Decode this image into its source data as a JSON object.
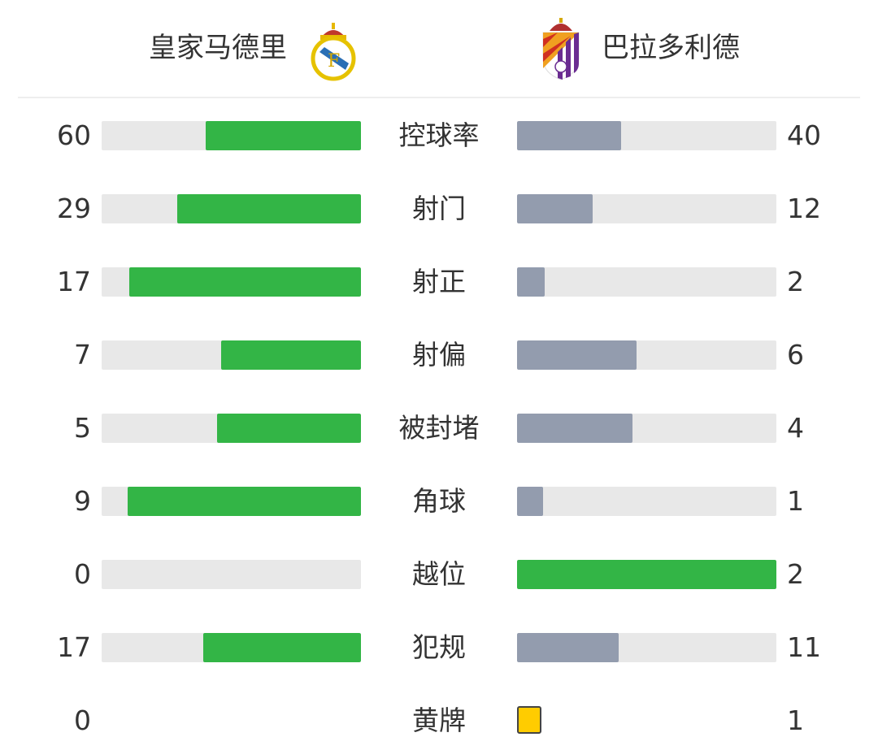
{
  "home": {
    "name": "皇家马德里",
    "logo": "real-madrid-crest"
  },
  "away": {
    "name": "巴拉多利德",
    "logo": "real-valladolid-crest"
  },
  "colors": {
    "leader": "#33b546",
    "trailer": "#939cae",
    "track": "#e8e8e8",
    "yellow_card": "#ffcc00"
  },
  "stats": [
    {
      "label": "控球率",
      "home": "60",
      "away": "40"
    },
    {
      "label": "射门",
      "home": "29",
      "away": "12"
    },
    {
      "label": "射正",
      "home": "17",
      "away": "2"
    },
    {
      "label": "射偏",
      "home": "7",
      "away": "6"
    },
    {
      "label": "被封堵",
      "home": "5",
      "away": "4"
    },
    {
      "label": "角球",
      "home": "9",
      "away": "1"
    },
    {
      "label": "越位",
      "home": "0",
      "away": "2"
    },
    {
      "label": "犯规",
      "home": "17",
      "away": "11"
    },
    {
      "label": "黄牌",
      "home": "0",
      "away": "1",
      "type": "card"
    }
  ]
}
